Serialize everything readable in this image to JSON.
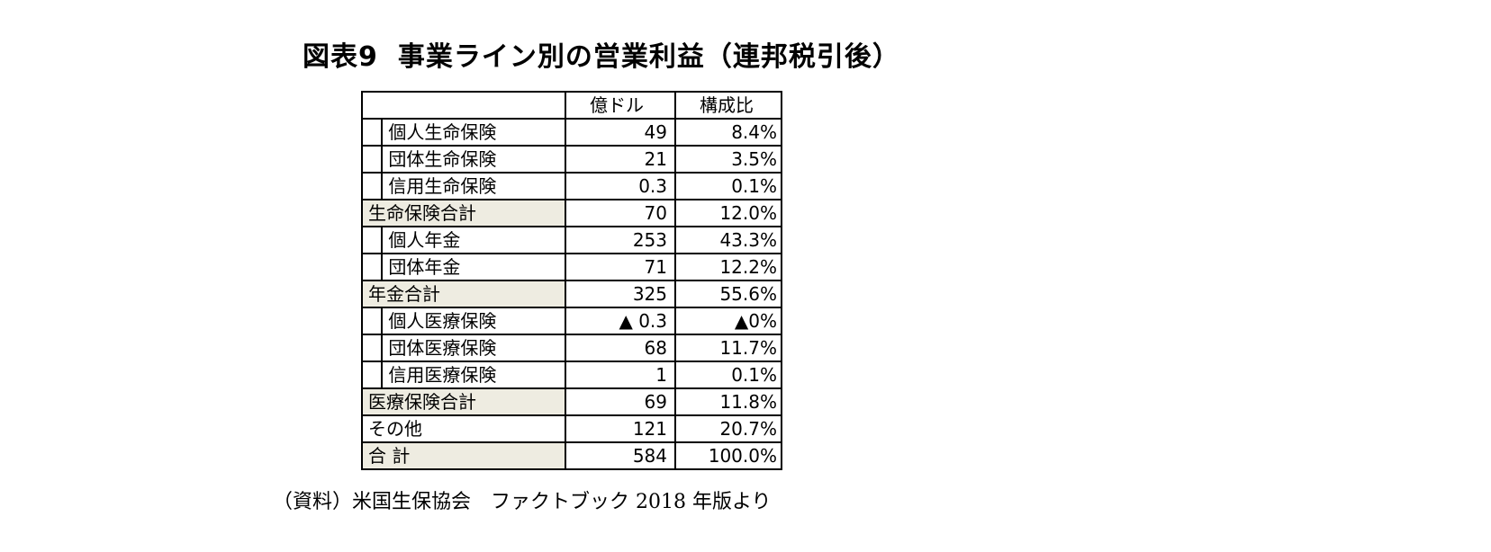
{
  "title": {
    "figure_label": "図表9",
    "text": "事業ライン別の営業利益（連邦税引後）"
  },
  "table": {
    "headers": [
      "億ドル",
      "構成比"
    ],
    "rows": [
      {
        "label": "個人生命保険",
        "amount": "49",
        "share": "8.4%",
        "kind": "item"
      },
      {
        "label": "団体生命保険",
        "amount": "21",
        "share": "3.5%",
        "kind": "item"
      },
      {
        "label": "信用生命保険",
        "amount": "0.3",
        "share": "0.1%",
        "kind": "item"
      },
      {
        "label": "生命保険合計",
        "amount": "70",
        "share": "12.0%",
        "kind": "subtotal"
      },
      {
        "label": "個人年金",
        "amount": "253",
        "share": "43.3%",
        "kind": "item"
      },
      {
        "label": "団体年金",
        "amount": "71",
        "share": "12.2%",
        "kind": "item"
      },
      {
        "label": "年金合計",
        "amount": "325",
        "share": "55.6%",
        "kind": "subtotal"
      },
      {
        "label": "個人医療保険",
        "amount": "▲ 0.3",
        "share": "▲0%",
        "kind": "item"
      },
      {
        "label": "団体医療保険",
        "amount": "68",
        "share": "11.7%",
        "kind": "item"
      },
      {
        "label": "信用医療保険",
        "amount": "1",
        "share": "0.1%",
        "kind": "item"
      },
      {
        "label": "医療保険合計",
        "amount": "69",
        "share": "11.8%",
        "kind": "subtotal"
      },
      {
        "label": "その他",
        "amount": "121",
        "share": "20.7%",
        "kind": "plain"
      },
      {
        "label": "合 計",
        "amount": "584",
        "share": "100.0%",
        "kind": "subtotal"
      }
    ]
  },
  "source": "（資料）米国生保協会　ファクトブック 2018 年版より"
}
